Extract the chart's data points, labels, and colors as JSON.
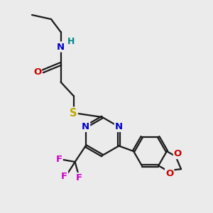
{
  "bg_color": "#ebebeb",
  "bond_color": "#1a1a1a",
  "line_width": 1.6,
  "atom_colors": {
    "N": "#0000cc",
    "O": "#cc0000",
    "S": "#bbaa00",
    "F": "#cc00cc",
    "H": "#008888",
    "C": "#1a1a1a"
  },
  "figsize": [
    3.0,
    3.0
  ],
  "dpi": 100,
  "xlim": [
    0,
    10
  ],
  "ylim": [
    0,
    10
  ]
}
